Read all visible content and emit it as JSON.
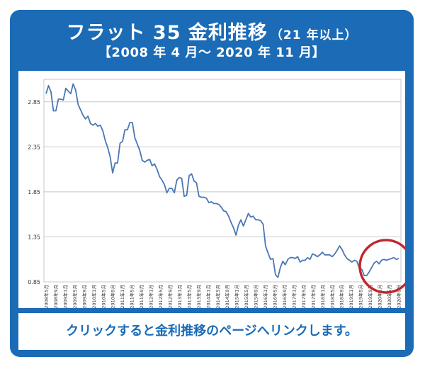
{
  "header": {
    "title_main": "フラット 35 金利推移",
    "title_sub": "（21 年以上）",
    "period": "【2008 年 4 月～ 2020 年 11 月】"
  },
  "footer": {
    "link_text": "クリックすると金利推移のページへリンクします。"
  },
  "colors": {
    "panel": "#1b6bb6",
    "line": "#4a77b4",
    "highlight_circle": "#c0272d",
    "grid": "#c8c8c8"
  },
  "chart_data": {
    "type": "line",
    "title": "",
    "xlabel": "",
    "ylabel": "",
    "ylim": [
      0.85,
      3.1
    ],
    "yticks": [
      0.85,
      1.35,
      1.85,
      2.35,
      2.85
    ],
    "ytick_labels": [
      "0.85",
      "1.35",
      "1.85",
      "2.35",
      "2.85"
    ],
    "grid": true,
    "xtick_labels": [
      "2008年5月",
      "2008年9月",
      "2009年1月",
      "2009年5月",
      "2009年9月",
      "2010年1月",
      "2010年5月",
      "2010年9月",
      "2011年1月",
      "2011年5月",
      "2011年9月",
      "2012年1月",
      "2012年5月",
      "2012年9月",
      "2013年1月",
      "2013年5月",
      "2013年9月",
      "2014年1月",
      "2014年5月",
      "2014年9月",
      "2015年1月",
      "2015年5月",
      "2015年9月",
      "2016年1月",
      "2016年5月",
      "2016年9月",
      "2017年1月",
      "2017年5月",
      "2017年9月",
      "2018年1月",
      "2018年5月",
      "2018年9月",
      "2019年1月",
      "2019年5月",
      "2019年9月",
      "2020年1月",
      "2020年5月",
      "2020年9月"
    ],
    "annotation": "red circle highlighting 2019年5月 – 2020年11月",
    "series": [
      {
        "values": [
          2.94,
          3.03,
          2.96,
          2.75,
          2.75,
          2.88,
          2.88,
          2.87,
          3.0,
          2.97,
          2.94,
          3.05,
          2.98,
          2.82,
          2.76,
          2.7,
          2.66,
          2.69,
          2.61,
          2.59,
          2.61,
          2.58,
          2.59,
          2.53,
          2.42,
          2.34,
          2.24,
          2.06,
          2.17,
          2.17,
          2.39,
          2.41,
          2.54,
          2.54,
          2.62,
          2.62,
          2.45,
          2.38,
          2.31,
          2.2,
          2.18,
          2.2,
          2.21,
          2.14,
          2.16,
          2.1,
          2.02,
          1.98,
          1.93,
          1.84,
          1.89,
          1.89,
          1.84,
          1.98,
          2.01,
          2.0,
          1.8,
          1.81,
          2.03,
          2.05,
          1.97,
          1.95,
          1.8,
          1.79,
          1.79,
          1.78,
          1.73,
          1.74,
          1.72,
          1.72,
          1.71,
          1.68,
          1.64,
          1.63,
          1.58,
          1.51,
          1.45,
          1.37,
          1.48,
          1.54,
          1.47,
          1.54,
          1.61,
          1.57,
          1.58,
          1.54,
          1.54,
          1.53,
          1.49,
          1.25,
          1.17,
          1.1,
          1.11,
          0.93,
          0.9,
          1.01,
          1.08,
          1.04,
          1.1,
          1.12,
          1.12,
          1.11,
          1.13,
          1.07,
          1.09,
          1.09,
          1.12,
          1.1,
          1.16,
          1.15,
          1.13,
          1.15,
          1.18,
          1.15,
          1.15,
          1.15,
          1.13,
          1.16,
          1.2,
          1.25,
          1.21,
          1.15,
          1.11,
          1.09,
          1.07,
          1.09,
          1.08,
          1.0,
          0.99,
          0.92,
          0.92,
          0.96,
          1.01,
          1.06,
          1.08,
          1.05,
          1.09,
          1.1,
          1.09,
          1.1,
          1.11,
          1.12,
          1.1,
          1.11
        ]
      }
    ]
  }
}
